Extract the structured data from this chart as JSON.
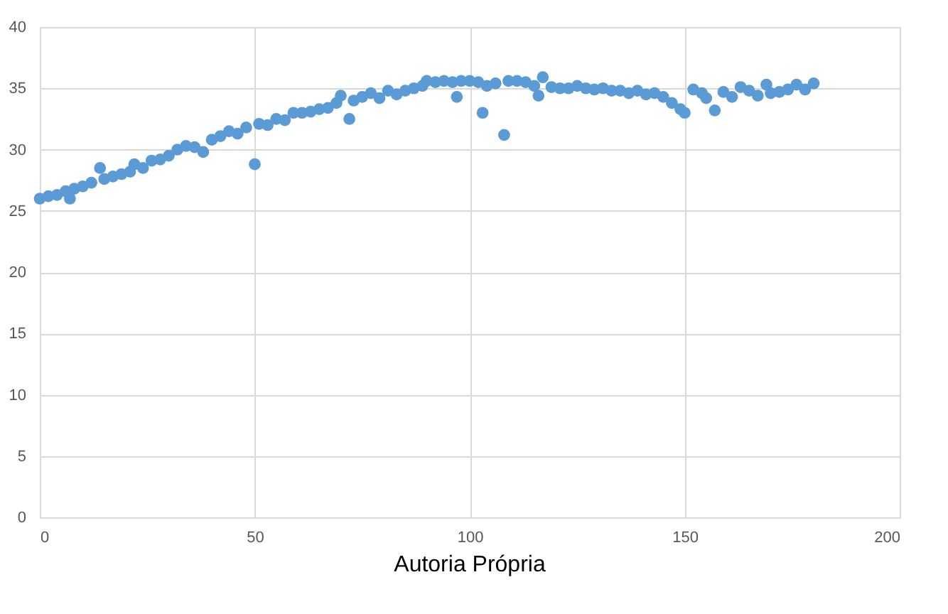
{
  "chart_data": {
    "type": "scatter",
    "annotations": [
      "Autoria Própria"
    ],
    "x": [
      0,
      2,
      4,
      6,
      7,
      8,
      10,
      12,
      14,
      15,
      17,
      19,
      21,
      22,
      24,
      26,
      28,
      30,
      32,
      34,
      36,
      38,
      40,
      42,
      44,
      46,
      48,
      50,
      51,
      53,
      55,
      57,
      59,
      61,
      63,
      65,
      67,
      69,
      70,
      72,
      73,
      75,
      77,
      79,
      81,
      83,
      85,
      87,
      89,
      90,
      92,
      94,
      96,
      97,
      98,
      100,
      102,
      103,
      104,
      106,
      108,
      109,
      111,
      113,
      115,
      116,
      117,
      119,
      121,
      123,
      125,
      127,
      129,
      131,
      133,
      135,
      137,
      139,
      141,
      143,
      145,
      147,
      149,
      150,
      152,
      154,
      155,
      157,
      159,
      161,
      163,
      165,
      167,
      169,
      170,
      172,
      174,
      176,
      178,
      180
    ],
    "series": [
      {
        "color": "#5b9bd5",
        "values": [
          26.0,
          26.2,
          26.3,
          26.6,
          26.0,
          26.8,
          27.0,
          27.3,
          28.5,
          27.6,
          27.8,
          28.0,
          28.2,
          28.8,
          28.5,
          29.1,
          29.2,
          29.5,
          30.0,
          30.3,
          30.2,
          29.8,
          30.8,
          31.1,
          31.5,
          31.3,
          31.8,
          28.8,
          32.1,
          32.0,
          32.5,
          32.4,
          33.0,
          33.0,
          33.1,
          33.3,
          33.4,
          33.8,
          34.4,
          32.5,
          34.0,
          34.3,
          34.6,
          34.2,
          34.8,
          34.5,
          34.8,
          35.0,
          35.2,
          35.6,
          35.5,
          35.6,
          35.5,
          34.3,
          35.6,
          35.6,
          35.5,
          33.0,
          35.2,
          35.4,
          31.2,
          35.6,
          35.6,
          35.5,
          35.2,
          34.4,
          35.9,
          35.1,
          35.0,
          35.0,
          35.2,
          35.0,
          34.9,
          35.0,
          34.8,
          34.8,
          34.6,
          34.8,
          34.5,
          34.6,
          34.3,
          33.8,
          33.3,
          33.0,
          34.9,
          34.6,
          34.2,
          33.2,
          34.7,
          34.3,
          35.1,
          34.8,
          34.4,
          35.3,
          34.6,
          34.7,
          34.9,
          35.3,
          34.9,
          35.4
        ]
      }
    ],
    "xlim": [
      0,
      200
    ],
    "xticks": [
      0,
      50,
      100,
      150,
      200
    ],
    "ylim": [
      0,
      40
    ],
    "yticks": [
      0,
      5,
      10,
      15,
      20,
      25,
      30,
      35,
      40
    ],
    "grid": true,
    "marker": "circle"
  }
}
